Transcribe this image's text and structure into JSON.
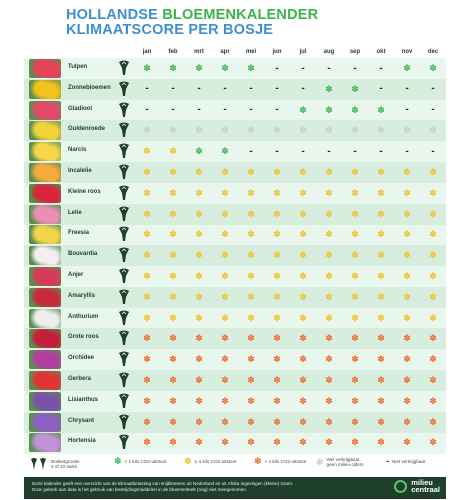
{
  "title": {
    "line1_blue": "HOLLANDSE ",
    "line1_green": "BLOEMENKALENDER",
    "line2": "KLIMAATSCORE PER BOSJE"
  },
  "months": [
    "jan",
    "feb",
    "mrt",
    "apr",
    "mei",
    "jun",
    "jul",
    "aug",
    "sep",
    "okt",
    "nov",
    "dec"
  ],
  "symbols": {
    "dash": "-",
    "green": "✽",
    "yellow": "✽",
    "orange": "✽",
    "grey": "✽"
  },
  "colors": {
    "green": "#3cb45a",
    "yellow": "#f3c02a",
    "orange": "#ef6a2e",
    "grey": "#c8cec9",
    "title_blue": "#3d8fd1",
    "title_green": "#39b54a"
  },
  "flowers": [
    {
      "name": "Tulpen",
      "color": "#e8415c",
      "cells": [
        "green",
        "green",
        "green",
        "green",
        "green",
        "dash",
        "dash",
        "dash",
        "dash",
        "dash",
        "green",
        "green"
      ]
    },
    {
      "name": "Zonnebloemen",
      "color": "#f4c21e",
      "cells": [
        "dash",
        "dash",
        "dash",
        "dash",
        "dash",
        "dash",
        "dash",
        "green",
        "green",
        "dash",
        "dash",
        "dash"
      ]
    },
    {
      "name": "Gladiool",
      "color": "#e24a6a",
      "cells": [
        "dash",
        "dash",
        "dash",
        "dash",
        "dash",
        "dash",
        "green",
        "green",
        "green",
        "green",
        "dash",
        "dash"
      ]
    },
    {
      "name": "Guldenroede",
      "color": "#f1d23a",
      "cells": [
        "grey",
        "grey",
        "grey",
        "grey",
        "grey",
        "grey",
        "grey",
        "grey",
        "grey",
        "grey",
        "grey",
        "grey"
      ]
    },
    {
      "name": "Narcis",
      "color": "#f7d648",
      "cells": [
        "yellow",
        "yellow",
        "green",
        "green",
        "dash",
        "dash",
        "dash",
        "dash",
        "dash",
        "dash",
        "dash",
        "dash"
      ]
    },
    {
      "name": "Incalelie",
      "color": "#f7a93c",
      "cells": [
        "yellow",
        "yellow",
        "yellow",
        "yellow",
        "yellow",
        "yellow",
        "yellow",
        "yellow",
        "yellow",
        "yellow",
        "yellow",
        "yellow"
      ]
    },
    {
      "name": "Kleine roos",
      "color": "#d9243b",
      "cells": [
        "yellow",
        "yellow",
        "yellow",
        "yellow",
        "yellow",
        "yellow",
        "yellow",
        "yellow",
        "yellow",
        "yellow",
        "yellow",
        "yellow"
      ]
    },
    {
      "name": "Lelie",
      "color": "#e88fb4",
      "cells": [
        "yellow",
        "yellow",
        "yellow",
        "yellow",
        "yellow",
        "yellow",
        "yellow",
        "yellow",
        "yellow",
        "yellow",
        "yellow",
        "yellow"
      ]
    },
    {
      "name": "Freesia",
      "color": "#f3d54c",
      "cells": [
        "yellow",
        "yellow",
        "yellow",
        "yellow",
        "yellow",
        "yellow",
        "yellow",
        "yellow",
        "yellow",
        "yellow",
        "yellow",
        "yellow"
      ]
    },
    {
      "name": "Bouvardia",
      "color": "#f4eef2",
      "cells": [
        "yellow",
        "yellow",
        "yellow",
        "yellow",
        "yellow",
        "yellow",
        "yellow",
        "yellow",
        "yellow",
        "yellow",
        "yellow",
        "yellow"
      ]
    },
    {
      "name": "Anjer",
      "color": "#d83a5a",
      "cells": [
        "yellow",
        "yellow",
        "yellow",
        "yellow",
        "yellow",
        "yellow",
        "yellow",
        "yellow",
        "yellow",
        "yellow",
        "yellow",
        "yellow"
      ]
    },
    {
      "name": "Amaryllis",
      "color": "#c9283c",
      "cells": [
        "yellow",
        "yellow",
        "yellow",
        "yellow",
        "yellow",
        "yellow",
        "yellow",
        "yellow",
        "yellow",
        "yellow",
        "yellow",
        "yellow"
      ]
    },
    {
      "name": "Anthurium",
      "color": "#eeeeee",
      "cells": [
        "yellow",
        "yellow",
        "yellow",
        "yellow",
        "yellow",
        "yellow",
        "yellow",
        "yellow",
        "yellow",
        "yellow",
        "yellow",
        "yellow"
      ]
    },
    {
      "name": "Grote roos",
      "color": "#c41e3a",
      "cells": [
        "orange",
        "orange",
        "orange",
        "orange",
        "orange",
        "orange",
        "orange",
        "orange",
        "orange",
        "orange",
        "orange",
        "orange"
      ]
    },
    {
      "name": "Orchidee",
      "color": "#b23fa0",
      "cells": [
        "orange",
        "orange",
        "orange",
        "orange",
        "orange",
        "orange",
        "orange",
        "orange",
        "orange",
        "orange",
        "orange",
        "orange"
      ]
    },
    {
      "name": "Gerbera",
      "color": "#e03535",
      "cells": [
        "orange",
        "orange",
        "orange",
        "orange",
        "orange",
        "orange",
        "orange",
        "orange",
        "orange",
        "orange",
        "orange",
        "orange"
      ]
    },
    {
      "name": "Lisianthus",
      "color": "#7a53a8",
      "cells": [
        "orange",
        "orange",
        "orange",
        "orange",
        "orange",
        "orange",
        "orange",
        "orange",
        "orange",
        "orange",
        "orange",
        "orange"
      ]
    },
    {
      "name": "Chrysant",
      "color": "#8e5fc2",
      "cells": [
        "orange",
        "orange",
        "orange",
        "orange",
        "orange",
        "orange",
        "orange",
        "orange",
        "orange",
        "orange",
        "orange",
        "orange"
      ]
    },
    {
      "name": "Hortensia",
      "color": "#c291d9",
      "cells": [
        "orange",
        "orange",
        "orange",
        "orange",
        "orange",
        "orange",
        "orange",
        "orange",
        "orange",
        "orange",
        "orange",
        "orange"
      ]
    }
  ],
  "legend": {
    "bouquet_line1": "Boeketgrootte",
    "bouquet_line2": "3 of 10 stuks",
    "green": "< 1 kilo CO2-uitstoot",
    "yellow": "1-4 kilo CO2-uitstoot",
    "orange": "> 4 kilo CO2-uitstoot",
    "grey_line1": "Wel verkrijgbaar,",
    "grey_line2": "geen milieu-cijfers",
    "dash": "Niet verkrijgbaar"
  },
  "footer": {
    "line1": "Deze kalender geeft een overzicht van de klimaatbelasting van snijbloemen uit Nederland en uit Afrika ingevlogen (kleine) rozen.",
    "line2": "Door gebrek aan data is het gebruik van bestrijdingsmiddelen in de bloementeelt (nog) niet meegenomen.",
    "logo_line1": "milieu",
    "logo_line2": "centraal"
  }
}
